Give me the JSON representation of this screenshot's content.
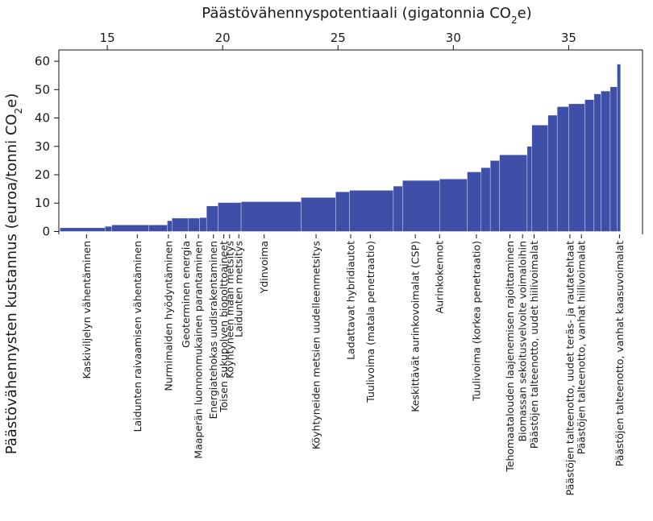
{
  "chart_data": {
    "type": "bar",
    "subtype": "marginal-abatement-cost-curve",
    "title": "",
    "xlabel": "Päästövähennyspotentiaali (gigatonnia CO₂e)",
    "xlabel_parts": {
      "before": "Päästövähennyspotentiaali (gigatonnia CO",
      "sub": "2",
      "after": "e)"
    },
    "ylabel": "Päästövähennysten kustannus (euroa/tonni CO₂e)",
    "ylabel_parts": {
      "before": "Päästövähennysten kustannus (euroa/tonni CO",
      "sub": "2",
      "after": "e)"
    },
    "xlim": [
      12.9,
      38.2
    ],
    "ylim": [
      -1,
      64
    ],
    "xticks": [
      15,
      20,
      25,
      30,
      35
    ],
    "yticks": [
      0,
      10,
      20,
      30,
      40,
      50,
      60
    ],
    "color": "#3f4fa8",
    "bars": [
      {
        "x0": 12.95,
        "x1": 14.9,
        "value": 1.3
      },
      {
        "x0": 14.9,
        "x1": 15.2,
        "value": 1.8
      },
      {
        "x0": 15.2,
        "x1": 16.8,
        "value": 2.3
      },
      {
        "x0": 16.8,
        "x1": 17.6,
        "value": 2.3
      },
      {
        "x0": 17.6,
        "x1": 17.8,
        "value": 3.8
      },
      {
        "x0": 17.8,
        "x1": 18.5,
        "value": 4.7
      },
      {
        "x0": 18.5,
        "x1": 19.0,
        "value": 4.7
      },
      {
        "x0": 19.0,
        "x1": 19.3,
        "value": 4.9
      },
      {
        "x0": 19.3,
        "x1": 19.8,
        "value": 9.0
      },
      {
        "x0": 19.8,
        "x1": 20.8,
        "value": 10.2
      },
      {
        "x0": 20.8,
        "x1": 23.4,
        "value": 10.5
      },
      {
        "x0": 23.4,
        "x1": 24.9,
        "value": 12.0
      },
      {
        "x0": 24.9,
        "x1": 25.5,
        "value": 14.0
      },
      {
        "x0": 25.5,
        "x1": 27.4,
        "value": 14.5
      },
      {
        "x0": 27.4,
        "x1": 27.8,
        "value": 16.0
      },
      {
        "x0": 27.8,
        "x1": 29.4,
        "value": 18.0
      },
      {
        "x0": 29.4,
        "x1": 30.6,
        "value": 18.5
      },
      {
        "x0": 30.6,
        "x1": 31.2,
        "value": 21.0
      },
      {
        "x0": 31.2,
        "x1": 31.6,
        "value": 22.5
      },
      {
        "x0": 31.6,
        "x1": 32.0,
        "value": 25.0
      },
      {
        "x0": 32.0,
        "x1": 33.2,
        "value": 27.0
      },
      {
        "x0": 33.2,
        "x1": 33.4,
        "value": 30.0
      },
      {
        "x0": 33.4,
        "x1": 34.1,
        "value": 37.5
      },
      {
        "x0": 34.1,
        "x1": 34.5,
        "value": 41.0
      },
      {
        "x0": 34.5,
        "x1": 35.0,
        "value": 44.0
      },
      {
        "x0": 35.0,
        "x1": 35.7,
        "value": 45.0
      },
      {
        "x0": 35.7,
        "x1": 36.1,
        "value": 46.5
      },
      {
        "x0": 36.1,
        "x1": 36.4,
        "value": 48.5
      },
      {
        "x0": 36.4,
        "x1": 36.8,
        "value": 49.5
      },
      {
        "x0": 36.8,
        "x1": 37.1,
        "value": 51.0
      },
      {
        "x0": 37.1,
        "x1": 37.25,
        "value": 59.0
      }
    ],
    "categories": [
      {
        "label": "Kaskiviljelyn vähentäminen",
        "x": 14.1
      },
      {
        "label": "Laidunten raivaamisen vähentäminen",
        "x": 16.3
      },
      {
        "label": "Nurmimaiden hyödyntäminen",
        "x": 17.65
      },
      {
        "label": "Geoterminen energia",
        "x": 18.4
      },
      {
        "label": "Maaperän luonnonmukainen parantaminen",
        "x": 18.95
      },
      {
        "label": "Energiatehokas uudisrakentaminen",
        "x": 19.6
      },
      {
        "label": "Toisen sukupolven biopolttoaineet",
        "x": 20.05
      },
      {
        "label": "Köyhtyneen maan metsitys",
        "x": 20.3
      },
      {
        "label": "Laidunten metsitys",
        "x": 20.7
      },
      {
        "label": "Ydinvoima",
        "x": 21.8
      },
      {
        "label": "Köyhtyneiden metsien uudelleenmetsitys",
        "x": 24.05
      },
      {
        "label": "Ladattavat hybridiautot",
        "x": 25.55
      },
      {
        "label": "Tuulivoima (matala penetraatio)",
        "x": 26.4
      },
      {
        "label": "Keskittävät aurinkovoimalat (CSP)",
        "x": 28.35
      },
      {
        "label": "Aurinkokennot",
        "x": 29.4
      },
      {
        "label": "Tuulivoima (korkea penetraatio)",
        "x": 31.0
      },
      {
        "label": "Tehomaatalouden laajenemisen rajoittaminen",
        "x": 32.45
      },
      {
        "label": "Biomassan sekoitusvelvoite voimaloihin",
        "x": 33.0
      },
      {
        "label": "Päästöjen talteenotto, uudet hiilivoimalat",
        "x": 33.5
      },
      {
        "label": "Päästöjen talteenotto, uudet teräs- ja rautatehtaat",
        "x": 35.05
      },
      {
        "label": "Päästöjen talteenotto, vanhat hiilivoimalat",
        "x": 35.55
      },
      {
        "label": "Päästöjen talteenotto, vanhat kaasuvoimalat",
        "x": 37.2
      }
    ]
  }
}
